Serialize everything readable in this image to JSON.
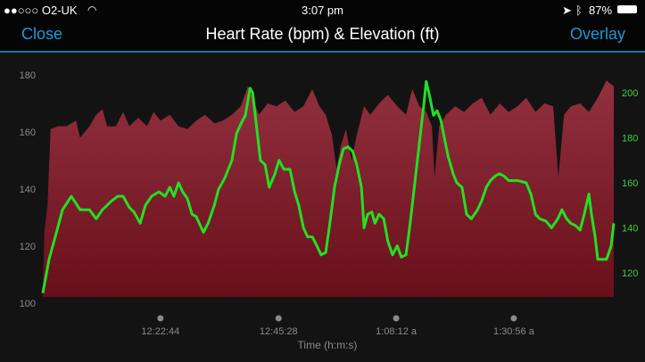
{
  "status_bar": {
    "carrier": "●●○○○ O2-UK",
    "time": "3:07 pm",
    "battery": "87%"
  },
  "nav": {
    "close": "Close",
    "title": "Heart Rate (bpm) & Elevation (ft)",
    "overlay": "Overlay"
  },
  "chart_data": {
    "type": "area+line",
    "title": "Heart Rate (bpm) & Elevation (ft)",
    "xlabel": "Time (h:m:s)",
    "x_unit": "minutes elapsed",
    "xlim": [
      0,
      110.2
    ],
    "x_ticks": [
      {
        "value": 22.7,
        "label": "12:22:44"
      },
      {
        "value": 45.5,
        "label": "12:45:28"
      },
      {
        "value": 68.2,
        "label": "1:08:12 a"
      },
      {
        "value": 90.9,
        "label": "1:30:56 a"
      }
    ],
    "left_axis": {
      "series": "Elevation (ft)",
      "ylim": [
        100,
        180
      ],
      "ticks": [
        "100",
        "120",
        "140",
        "160",
        "180"
      ]
    },
    "right_axis": {
      "series": "Heart Rate (bpm)",
      "ylim": [
        120,
        200
      ],
      "ticks": [
        "120",
        "140",
        "160",
        "180",
        "200"
      ]
    },
    "colors": {
      "elevation_top": "#93303f",
      "elevation_bottom": "#680f1a",
      "heart_rate": "#22e022"
    },
    "series": [
      {
        "name": "Elevation (ft)",
        "type": "area",
        "axis": "left",
        "x": [
          0,
          0.3,
          0.9,
          1.5,
          2.9,
          4.6,
          6.4,
          7.2,
          9.0,
          10.3,
          11.5,
          12.4,
          14.1,
          15.5,
          16.7,
          18.4,
          20.1,
          21.4,
          22.7,
          24.5,
          26.2,
          27.9,
          29.6,
          31.3,
          33.1,
          34.8,
          36.5,
          38.2,
          39.6,
          40.5,
          41.7,
          43.4,
          45.1,
          46.8,
          48.6,
          50.3,
          52.0,
          53.4,
          54.6,
          55.8,
          56.7,
          57.5,
          58.5,
          59.6,
          60.6,
          62.0,
          63.2,
          64.9,
          66.6,
          68.4,
          70.1,
          71.3,
          72.7,
          74.0,
          75.1,
          75.6,
          76.5,
          77.8,
          79.6,
          81.3,
          83.0,
          84.7,
          86.4,
          88.2,
          89.9,
          91.6,
          93.3,
          95.1,
          96.8,
          98.5,
          99.5,
          100.6,
          101.9,
          103.7,
          105.4,
          107.1,
          108.8,
          110.2
        ],
        "y": [
          103,
          125,
          134,
          161,
          162,
          162,
          164,
          158,
          162,
          166,
          168,
          162,
          162,
          167,
          162,
          165,
          162,
          167,
          164,
          166,
          162,
          161,
          164,
          166,
          163,
          164,
          166,
          169,
          176,
          172,
          166,
          170,
          169,
          171,
          167,
          169,
          175,
          169,
          166,
          159,
          147,
          155,
          161,
          150,
          159,
          169,
          166,
          170,
          173,
          169,
          166,
          175,
          169,
          167,
          162,
          144,
          162,
          166,
          169,
          167,
          170,
          172,
          166,
          170,
          167,
          169,
          172,
          167,
          170,
          169,
          144,
          166,
          169,
          170,
          167,
          172,
          178,
          176
        ]
      },
      {
        "name": "Heart Rate (bpm)",
        "type": "line",
        "axis": "right",
        "x": [
          0,
          1.2,
          2.4,
          3.8,
          5.5,
          7.2,
          9.0,
          10.3,
          11.5,
          13.3,
          14.5,
          15.5,
          16.7,
          17.6,
          18.8,
          19.8,
          21.0,
          22.4,
          23.6,
          24.5,
          25.3,
          26.2,
          27.0,
          27.9,
          28.8,
          29.6,
          31.0,
          31.9,
          33.1,
          33.9,
          35.1,
          36.5,
          37.4,
          38.2,
          39.1,
          40.0,
          40.5,
          41.2,
          42.0,
          42.9,
          43.7,
          44.8,
          45.6,
          46.5,
          47.7,
          48.6,
          49.4,
          50.3,
          51.1,
          52.0,
          52.9,
          53.7,
          54.6,
          55.4,
          56.3,
          57.2,
          58.0,
          58.9,
          59.8,
          60.6,
          61.5,
          62.0,
          62.7,
          63.5,
          64.1,
          64.9,
          65.8,
          66.6,
          67.5,
          68.4,
          69.2,
          70.1,
          70.9,
          71.8,
          72.7,
          73.5,
          74.0,
          74.7,
          75.4,
          76.1,
          76.8,
          77.5,
          78.2,
          79.2,
          79.9,
          80.9,
          81.8,
          82.7,
          83.9,
          84.7,
          85.6,
          86.4,
          87.3,
          88.1,
          89.0,
          89.9,
          91.6,
          93.3,
          94.2,
          95.1,
          95.9,
          97.1,
          98.2,
          99.4,
          100.2,
          101.1,
          101.9,
          102.8,
          103.7,
          104.5,
          105.4,
          105.9,
          106.6,
          107.1,
          108.8,
          109.7,
          110.2
        ],
        "y": [
          111,
          126,
          136,
          148,
          154,
          148,
          148,
          144,
          148,
          152,
          154,
          154,
          149,
          147,
          142,
          150,
          154,
          156,
          154,
          158,
          154,
          160,
          156,
          153,
          146,
          145,
          138,
          142,
          150,
          157,
          162,
          170,
          182,
          186,
          190,
          202,
          200,
          186,
          170,
          168,
          158,
          164,
          170,
          166,
          166,
          156,
          150,
          140,
          136,
          136,
          132,
          128,
          129,
          142,
          158,
          168,
          175,
          176,
          174,
          168,
          158,
          140,
          146,
          147,
          142,
          146,
          144,
          134,
          128,
          132,
          127,
          128,
          142,
          160,
          178,
          194,
          205,
          198,
          190,
          192,
          188,
          180,
          172,
          164,
          160,
          158,
          146,
          144,
          148,
          152,
          158,
          161,
          163,
          164,
          163,
          161,
          161,
          160,
          155,
          146,
          144,
          143,
          140,
          144,
          148,
          144,
          142,
          141,
          139,
          146,
          155,
          146,
          136,
          126,
          126,
          132,
          142
        ]
      }
    ]
  }
}
